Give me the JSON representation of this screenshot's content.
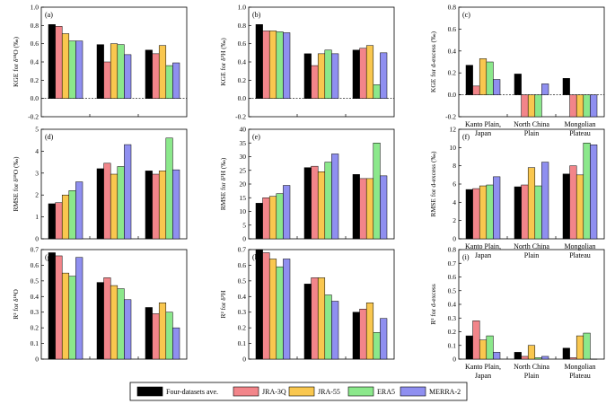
{
  "colors": {
    "series": [
      "#000000",
      "#f2858a",
      "#f9c74f",
      "#8be88b",
      "#8f8ff0"
    ],
    "edge": "#000000"
  },
  "legend": {
    "entries": [
      "Four-datasets ave.",
      "JRA-3Q",
      "JRA-55",
      "ERA5",
      "MERRA-2"
    ]
  },
  "chart_data": [
    {
      "type": "bar",
      "panel": "(a)",
      "ylabel": "KGE for δ¹⁸O (‰)",
      "ylim": [
        -0.2,
        1.0
      ],
      "yticks": [
        -0.2,
        0.0,
        0.2,
        0.4,
        0.6,
        0.8,
        1.0
      ],
      "ytick_labels": [
        "-0.2",
        "0.0",
        "0.2",
        "0.4",
        "0.6",
        "0.8",
        "1.0"
      ],
      "zero_line": true,
      "show_categories": false,
      "categories": [
        "Kanto Plain, Japan",
        "North China Plain",
        "Mongolian Plateau"
      ],
      "series": [
        {
          "name": "Four-datasets ave.",
          "values": [
            0.81,
            0.59,
            0.53
          ]
        },
        {
          "name": "JRA-3Q",
          "values": [
            0.79,
            0.4,
            0.49
          ]
        },
        {
          "name": "JRA-55",
          "values": [
            0.71,
            0.6,
            0.58
          ]
        },
        {
          "name": "ERA5",
          "values": [
            0.63,
            0.59,
            0.36
          ]
        },
        {
          "name": "MERRA-2",
          "values": [
            0.63,
            0.48,
            0.39
          ]
        }
      ]
    },
    {
      "type": "bar",
      "panel": "(d)",
      "ylabel": "RMSE for δ¹⁸O (‰)",
      "ylim": [
        0,
        5
      ],
      "yticks": [
        0,
        1,
        2,
        3,
        4,
        5
      ],
      "ytick_labels": [
        "0",
        "1",
        "2",
        "3",
        "4",
        "5"
      ],
      "zero_line": false,
      "show_categories": false,
      "categories": [
        "Kanto Plain, Japan",
        "North China Plain",
        "Mongolian Plateau"
      ],
      "series": [
        {
          "name": "Four-datasets ave.",
          "values": [
            1.6,
            3.2,
            3.1
          ]
        },
        {
          "name": "JRA-3Q",
          "values": [
            1.65,
            3.45,
            2.95
          ]
        },
        {
          "name": "JRA-55",
          "values": [
            2.0,
            2.95,
            3.1
          ]
        },
        {
          "name": "ERA5",
          "values": [
            2.2,
            3.3,
            4.6
          ]
        },
        {
          "name": "MERRA-2",
          "values": [
            2.6,
            4.3,
            3.15
          ]
        }
      ]
    },
    {
      "type": "bar",
      "panel": "(g)",
      "ylabel": "R² for δ¹⁸O",
      "ylim": [
        0,
        0.7
      ],
      "yticks": [
        0,
        0.1,
        0.2,
        0.3,
        0.4,
        0.5,
        0.6,
        0.7
      ],
      "ytick_labels": [
        "0",
        "0.1",
        "0.2",
        "0.3",
        "0.4",
        "0.5",
        "0.6",
        "0.7"
      ],
      "zero_line": false,
      "show_categories": false,
      "categories": [
        "Kanto Plain, Japan",
        "North China Plain",
        "Mongolian Plateau"
      ],
      "series": [
        {
          "name": "Four-datasets ave.",
          "values": [
            0.68,
            0.49,
            0.33
          ]
        },
        {
          "name": "JRA-3Q",
          "values": [
            0.66,
            0.52,
            0.29
          ]
        },
        {
          "name": "JRA-55",
          "values": [
            0.55,
            0.47,
            0.36
          ]
        },
        {
          "name": "ERA5",
          "values": [
            0.53,
            0.45,
            0.3
          ]
        },
        {
          "name": "MERRA-2",
          "values": [
            0.65,
            0.38,
            0.2
          ]
        }
      ]
    },
    {
      "type": "bar",
      "panel": "(b)",
      "ylabel": "KGE for δ²H (‰)",
      "ylim": [
        -0.2,
        1.0
      ],
      "yticks": [
        -0.2,
        0.0,
        0.2,
        0.4,
        0.6,
        0.8,
        1.0
      ],
      "ytick_labels": [
        "-0.2",
        "0.0",
        "0.2",
        "0.4",
        "0.6",
        "0.8",
        "1.0"
      ],
      "zero_line": true,
      "show_categories": false,
      "categories": [
        "Kanto Plain, Japan",
        "North China Plain",
        "Mongolian Plateau"
      ],
      "series": [
        {
          "name": "Four-datasets ave.",
          "values": [
            0.81,
            0.49,
            0.53
          ]
        },
        {
          "name": "JRA-3Q",
          "values": [
            0.74,
            0.36,
            0.55
          ]
        },
        {
          "name": "JRA-55",
          "values": [
            0.74,
            0.49,
            0.58
          ]
        },
        {
          "name": "ERA5",
          "values": [
            0.73,
            0.53,
            0.15
          ]
        },
        {
          "name": "MERRA-2",
          "values": [
            0.72,
            0.49,
            0.5
          ]
        }
      ]
    },
    {
      "type": "bar",
      "panel": "(e)",
      "ylabel": "RMSE for δ²H (‰)",
      "ylim": [
        0,
        40
      ],
      "yticks": [
        0,
        5,
        10,
        15,
        20,
        25,
        30,
        35,
        40
      ],
      "ytick_labels": [
        "0",
        "5",
        "10",
        "15",
        "20",
        "25",
        "30",
        "35",
        "40"
      ],
      "zero_line": false,
      "show_categories": false,
      "categories": [
        "Kanto Plain, Japan",
        "North China Plain",
        "Mongolian Plateau"
      ],
      "series": [
        {
          "name": "Four-datasets ave.",
          "values": [
            13.0,
            26.0,
            23.5
          ]
        },
        {
          "name": "JRA-3Q",
          "values": [
            15.0,
            26.5,
            22.0
          ]
        },
        {
          "name": "JRA-55",
          "values": [
            15.5,
            24.5,
            22.0
          ]
        },
        {
          "name": "ERA5",
          "values": [
            16.5,
            28.0,
            35.0
          ]
        },
        {
          "name": "MERRA-2",
          "values": [
            19.5,
            31.0,
            23.0
          ]
        }
      ]
    },
    {
      "type": "bar",
      "panel": "(h)",
      "ylabel": "R² for δ²H",
      "ylim": [
        0,
        0.7
      ],
      "yticks": [
        0,
        0.1,
        0.2,
        0.3,
        0.4,
        0.5,
        0.6,
        0.7
      ],
      "ytick_labels": [
        "0",
        "0.1",
        "0.2",
        "0.3",
        "0.4",
        "0.5",
        "0.6",
        "0.7"
      ],
      "zero_line": false,
      "show_categories": false,
      "categories": [
        "Kanto Plain, Japan",
        "North China Plain",
        "Mongolian Plateau"
      ],
      "series": [
        {
          "name": "Four-datasets ave.",
          "values": [
            0.7,
            0.48,
            0.3
          ]
        },
        {
          "name": "JRA-3Q",
          "values": [
            0.68,
            0.52,
            0.32
          ]
        },
        {
          "name": "JRA-55",
          "values": [
            0.64,
            0.52,
            0.36
          ]
        },
        {
          "name": "ERA5",
          "values": [
            0.59,
            0.41,
            0.17
          ]
        },
        {
          "name": "MERRA-2",
          "values": [
            0.64,
            0.37,
            0.26
          ]
        }
      ]
    },
    {
      "type": "bar",
      "panel": "(c)",
      "ylabel": "KGE for d-excess (‰)",
      "ylim": [
        -0.2,
        0.8
      ],
      "yticks": [
        -0.2,
        0.0,
        0.2,
        0.4,
        0.6,
        0.8
      ],
      "ytick_labels": [
        "-0.2",
        "0.0",
        "0.2",
        "0.4",
        "0.6",
        "0.8"
      ],
      "zero_line": true,
      "show_categories": true,
      "categories": [
        "Kanto Plain, Japan",
        "North China Plain",
        "Mongolian Plateau"
      ],
      "series": [
        {
          "name": "Four-datasets ave.",
          "values": [
            0.27,
            0.19,
            0.15
          ]
        },
        {
          "name": "JRA-3Q",
          "values": [
            0.08,
            -0.2,
            -0.2
          ]
        },
        {
          "name": "JRA-55",
          "values": [
            0.33,
            -0.2,
            -0.2
          ]
        },
        {
          "name": "ERA5",
          "values": [
            0.3,
            -0.2,
            -0.2
          ]
        },
        {
          "name": "MERRA-2",
          "values": [
            0.14,
            0.1,
            -0.2
          ]
        }
      ]
    },
    {
      "type": "bar",
      "panel": "(f)",
      "ylabel": "RMSE for d-excess (‰)",
      "ylim": [
        0,
        12
      ],
      "yticks": [
        0,
        2,
        4,
        6,
        8,
        10,
        12
      ],
      "ytick_labels": [
        "0",
        "2",
        "4",
        "6",
        "8",
        "10",
        "12"
      ],
      "zero_line": false,
      "show_categories": true,
      "categories": [
        "Kanto Plain, Japan",
        "North China Plain",
        "Mongolian Plateau"
      ],
      "series": [
        {
          "name": "Four-datasets ave.",
          "values": [
            5.4,
            5.7,
            7.1
          ]
        },
        {
          "name": "JRA-3Q",
          "values": [
            5.5,
            5.9,
            8.0
          ]
        },
        {
          "name": "JRA-55",
          "values": [
            5.8,
            7.8,
            7.0
          ]
        },
        {
          "name": "ERA5",
          "values": [
            5.9,
            5.8,
            10.5
          ]
        },
        {
          "name": "MERRA-2",
          "values": [
            6.8,
            8.4,
            10.3
          ]
        }
      ]
    },
    {
      "type": "bar",
      "panel": "(i)",
      "ylabel": "R² for d-excess",
      "ylim": [
        0,
        0.8
      ],
      "yticks": [
        0,
        0.1,
        0.2,
        0.3,
        0.4,
        0.5,
        0.6,
        0.7,
        0.8
      ],
      "ytick_labels": [
        "0",
        "0.1",
        "0.2",
        "0.3",
        "0.4",
        "0.5",
        "0.6",
        "0.7",
        "0.8"
      ],
      "zero_line": false,
      "show_categories": true,
      "categories": [
        "Kanto Plain, Japan",
        "North China Plain",
        "Mongolian Plateau"
      ],
      "series": [
        {
          "name": "Four-datasets ave.",
          "values": [
            0.17,
            0.05,
            0.08
          ]
        },
        {
          "name": "JRA-3Q",
          "values": [
            0.28,
            0.02,
            0.01
          ]
        },
        {
          "name": "JRA-55",
          "values": [
            0.14,
            0.1,
            0.17
          ]
        },
        {
          "name": "ERA5",
          "values": [
            0.17,
            0.01,
            0.19
          ]
        },
        {
          "name": "MERRA-2",
          "values": [
            0.05,
            0.02,
            0.0
          ]
        }
      ]
    }
  ]
}
